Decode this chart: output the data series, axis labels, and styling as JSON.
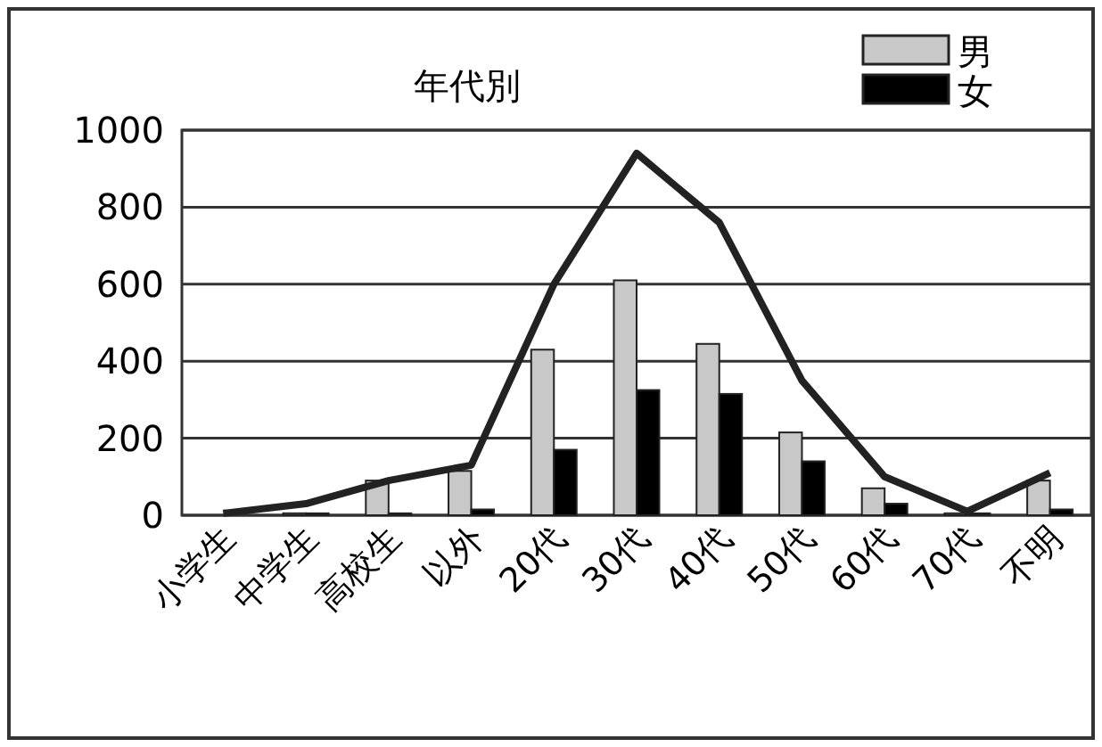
{
  "chart_data": {
    "type": "bar",
    "title": "年代別",
    "categories": [
      "小学生",
      "中学生",
      "高校生",
      "以外",
      "20代",
      "30代",
      "40代",
      "50代",
      "60代",
      "70代",
      "不明"
    ],
    "series": [
      {
        "name": "男",
        "color": "#c8c8c8",
        "values": [
          0,
          5,
          90,
          115,
          430,
          610,
          445,
          215,
          70,
          5,
          90
        ]
      },
      {
        "name": "女",
        "color": "#000000",
        "values": [
          0,
          5,
          5,
          15,
          170,
          325,
          315,
          140,
          30,
          5,
          15
        ]
      },
      {
        "type": "line",
        "color": "#222222",
        "values": [
          5,
          30,
          90,
          130,
          600,
          940,
          760,
          350,
          100,
          10,
          110
        ]
      }
    ],
    "ylim": [
      0,
      1000
    ],
    "yticks": [
      0,
      200,
      400,
      600,
      800,
      1000
    ],
    "grid": "y",
    "legend": "top right",
    "marker": "none"
  }
}
